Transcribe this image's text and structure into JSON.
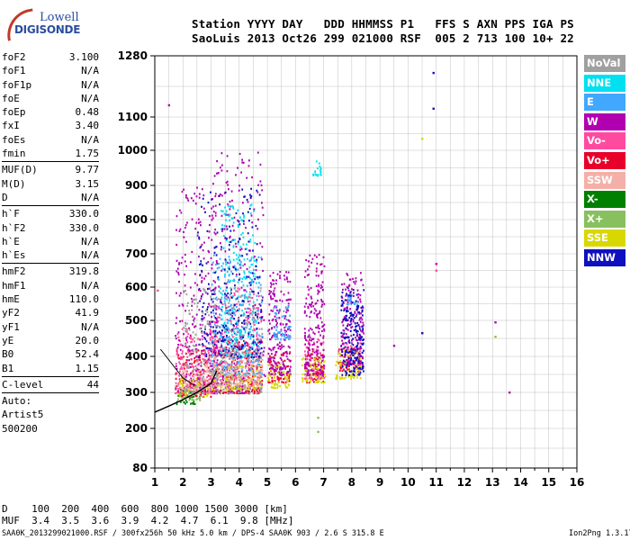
{
  "logo": {
    "line1": "Lowell",
    "line2": "DIGISONDE"
  },
  "header": {
    "row1": "Station YYYY DAY   DDD HHMMSS P1   FFS S AXN PPS IGA PS",
    "row2": "SaoLuis 2013 Oct26 299 021000 RSF  005 2 713 100 10+ 22"
  },
  "params": {
    "group1": [
      {
        "k": "foF2",
        "v": "3.100"
      },
      {
        "k": "foF1",
        "v": "N/A"
      },
      {
        "k": "foF1p",
        "v": "N/A"
      },
      {
        "k": "foE",
        "v": "N/A"
      },
      {
        "k": "foEp",
        "v": "0.48"
      },
      {
        "k": "fxI",
        "v": "3.40"
      },
      {
        "k": "foEs",
        "v": "N/A"
      },
      {
        "k": "fmin",
        "v": "1.75"
      }
    ],
    "group2": [
      {
        "k": "MUF(D)",
        "v": "9.77"
      },
      {
        "k": "M(D)",
        "v": "3.15"
      },
      {
        "k": "D",
        "v": "N/A"
      }
    ],
    "group3": [
      {
        "k": "h`F",
        "v": "330.0"
      },
      {
        "k": "h`F2",
        "v": "330.0"
      },
      {
        "k": "h`E",
        "v": "N/A"
      },
      {
        "k": "h`Es",
        "v": "N/A"
      }
    ],
    "group4": [
      {
        "k": "hmF2",
        "v": "319.8"
      },
      {
        "k": "hmF1",
        "v": "N/A"
      },
      {
        "k": "hmE",
        "v": "110.0"
      },
      {
        "k": "yF2",
        "v": "41.9"
      },
      {
        "k": "yF1",
        "v": "N/A"
      },
      {
        "k": "yE",
        "v": "20.0"
      },
      {
        "k": "B0",
        "v": "52.4"
      },
      {
        "k": "B1",
        "v": "1.15"
      }
    ],
    "clevel": {
      "k": "C-level",
      "v": "44"
    },
    "auto": [
      "Auto:",
      "Artist5",
      "500200"
    ]
  },
  "legend": [
    {
      "label": "NoVal",
      "bg": "#a0a0a0",
      "fg": "#ffffff"
    },
    {
      "label": "NNE",
      "bg": "#00e0f0",
      "fg": "#ffffff"
    },
    {
      "label": "E",
      "bg": "#40a8ff",
      "fg": "#ffffff"
    },
    {
      "label": "W",
      "bg": "#b000b0",
      "fg": "#ffffff"
    },
    {
      "label": "Vo-",
      "bg": "#ff4aa0",
      "fg": "#ffffff"
    },
    {
      "label": "Vo+",
      "bg": "#e8002a",
      "fg": "#ffffff"
    },
    {
      "label": "SSW",
      "bg": "#f4b0a8",
      "fg": "#ffffff"
    },
    {
      "label": "X-",
      "bg": "#008000",
      "fg": "#ffffff"
    },
    {
      "label": "X+",
      "bg": "#88c060",
      "fg": "#ffffff"
    },
    {
      "label": "SSE",
      "bg": "#d8d800",
      "fg": "#ffffff"
    },
    {
      "label": "NNW",
      "bg": "#1010c0",
      "fg": "#ffffff"
    }
  ],
  "bottom": {
    "d_row": "D    100  200  400  600  800 1000 1500 3000 [km]",
    "muf_row": "MUF  3.4  3.5  3.6  3.9  4.2  4.7  6.1  9.8 [MHz]"
  },
  "footer": {
    "left": "SAA0K_2013299021000.RSF / 300fx256h 50 kHz 5.0 km / DPS-4 SAA0K 903 / 2.6 S 315.8 E",
    "right": "Ion2Png 1.3.17"
  },
  "chart_data": {
    "type": "scatter",
    "xlabel": "",
    "ylabel": "",
    "xlim": [
      1,
      16
    ],
    "ylim": [
      80,
      1280
    ],
    "x_ticks": [
      "1",
      "2",
      "3",
      "4",
      "5",
      "6",
      "7",
      "8",
      "9",
      "10",
      "11",
      "12",
      "13",
      "14",
      "15",
      "16"
    ],
    "y_ticks": [
      "80",
      "200",
      "300",
      "400",
      "500",
      "600",
      "700",
      "800",
      "900",
      "1000",
      "1100",
      "1280"
    ],
    "y_tick_values": [
      80,
      200,
      300,
      400,
      500,
      600,
      700,
      800,
      900,
      1000,
      1100,
      1280
    ],
    "grid": true,
    "series": [
      {
        "name": "Vo+",
        "color": "#e8002a",
        "clusters": [
          [
            1.7,
            3.0,
            290,
            420
          ],
          [
            3.0,
            4.8,
            300,
            450
          ],
          [
            5.0,
            5.8,
            330,
            420
          ],
          [
            6.3,
            7.0,
            330,
            430
          ],
          [
            7.5,
            8.3,
            360,
            430
          ]
        ]
      },
      {
        "name": "Vo-",
        "color": "#ff4aa0",
        "clusters": [
          [
            1.7,
            3.2,
            300,
            480
          ],
          [
            3.0,
            4.8,
            320,
            600
          ],
          [
            6.3,
            7.0,
            340,
            450
          ],
          [
            7.5,
            8.3,
            380,
            440
          ]
        ]
      },
      {
        "name": "W",
        "color": "#b000b0",
        "clusters": [
          [
            1.7,
            3.2,
            300,
            900
          ],
          [
            3.0,
            4.9,
            300,
            1000
          ],
          [
            5.0,
            5.8,
            350,
            650
          ],
          [
            6.3,
            7.0,
            350,
            700
          ],
          [
            7.6,
            8.4,
            380,
            650
          ]
        ]
      },
      {
        "name": "SSE",
        "color": "#d8d800",
        "clusters": [
          [
            1.8,
            3.0,
            290,
            340
          ],
          [
            3.0,
            4.8,
            310,
            380
          ],
          [
            5.0,
            5.8,
            315,
            380
          ],
          [
            6.2,
            7.1,
            330,
            400
          ],
          [
            7.4,
            8.3,
            340,
            420
          ]
        ]
      },
      {
        "name": "X-",
        "color": "#008000",
        "clusters": [
          [
            1.7,
            2.4,
            270,
            310
          ]
        ]
      },
      {
        "name": "X+",
        "color": "#88c060",
        "clusters": [
          [
            1.8,
            2.6,
            280,
            320
          ]
        ]
      },
      {
        "name": "E",
        "color": "#40a8ff",
        "clusters": [
          [
            3.0,
            4.8,
            350,
            700
          ],
          [
            5.2,
            5.8,
            450,
            550
          ],
          [
            7.8,
            8.2,
            550,
            580
          ]
        ]
      },
      {
        "name": "NNE",
        "color": "#00e0f0",
        "clusters": [
          [
            3.3,
            4.6,
            400,
            850
          ],
          [
            6.6,
            6.9,
            930,
            980
          ]
        ]
      },
      {
        "name": "NNW",
        "color": "#1010c0",
        "clusters": [
          [
            2.5,
            4.8,
            400,
            900
          ],
          [
            7.6,
            8.4,
            350,
            600
          ]
        ]
      },
      {
        "name": "SSW",
        "color": "#f4b0a8",
        "clusters": [
          [
            1.7,
            3.0,
            310,
            380
          ],
          [
            3.0,
            4.8,
            320,
            420
          ]
        ]
      },
      {
        "name": "NoVal",
        "color": "#a0a0a0",
        "clusters": [
          [
            2.0,
            4.8,
            300,
            600
          ]
        ]
      }
    ],
    "isolated_points": [
      {
        "x": 1.5,
        "y": 1135,
        "color": "#b000b0"
      },
      {
        "x": 10.9,
        "y": 1230,
        "color": "#1010c0"
      },
      {
        "x": 10.9,
        "y": 1125,
        "color": "#1010c0"
      },
      {
        "x": 10.5,
        "y": 1035,
        "color": "#d8d800"
      },
      {
        "x": 11.0,
        "y": 670,
        "color": "#b000b0"
      },
      {
        "x": 11.0,
        "y": 650,
        "color": "#ff4aa0"
      },
      {
        "x": 10.5,
        "y": 465,
        "color": "#1010c0"
      },
      {
        "x": 13.1,
        "y": 495,
        "color": "#b000b0"
      },
      {
        "x": 13.6,
        "y": 300,
        "color": "#b000b0"
      },
      {
        "x": 13.1,
        "y": 455,
        "color": "#88c060"
      },
      {
        "x": 1.1,
        "y": 590,
        "color": "#ff4aa0"
      },
      {
        "x": 6.8,
        "y": 230,
        "color": "#88c060"
      },
      {
        "x": 6.8,
        "y": 190,
        "color": "#88c060"
      },
      {
        "x": 9.5,
        "y": 430,
        "color": "#b000b0"
      }
    ],
    "trace": [
      [
        1,
        245
      ],
      [
        1.5,
        262
      ],
      [
        2.0,
        280
      ],
      [
        2.5,
        300
      ],
      [
        3.0,
        325
      ],
      [
        3.2,
        360
      ]
    ],
    "trace2": [
      [
        1.2,
        420
      ],
      [
        1.6,
        380
      ],
      [
        2.0,
        340
      ],
      [
        2.4,
        320
      ]
    ]
  }
}
